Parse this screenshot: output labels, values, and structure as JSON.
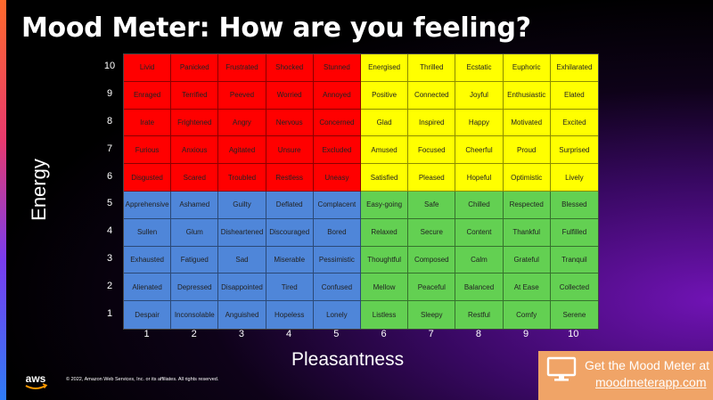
{
  "title": "Mood Meter: How are you feeling?",
  "y_axis_label": "Energy",
  "x_axis_label": "Pleasantness",
  "y_ticks": [
    "10",
    "9",
    "8",
    "7",
    "6",
    "5",
    "4",
    "3",
    "2",
    "1"
  ],
  "x_ticks": [
    "1",
    "2",
    "3",
    "4",
    "5",
    "6",
    "7",
    "8",
    "9",
    "10"
  ],
  "quadrant_colors": {
    "red": "#ff0000",
    "yellow": "#ffff00",
    "blue": "#4f86d9",
    "green": "#63d052"
  },
  "rows": [
    [
      "Livid",
      "Panicked",
      "Frustrated",
      "Shocked",
      "Stunned",
      "Energised",
      "Thrilled",
      "Ecstatic",
      "Euphoric",
      "Exhilarated"
    ],
    [
      "Enraged",
      "Terrified",
      "Peeved",
      "Worried",
      "Annoyed",
      "Positive",
      "Connected",
      "Joyful",
      "Enthusiastic",
      "Elated"
    ],
    [
      "Irate",
      "Frightened",
      "Angry",
      "Nervous",
      "Concerned",
      "Glad",
      "Inspired",
      "Happy",
      "Motivated",
      "Excited"
    ],
    [
      "Furious",
      "Anxious",
      "Agitated",
      "Unsure",
      "Excluded",
      "Amused",
      "Focused",
      "Cheerful",
      "Proud",
      "Surprised"
    ],
    [
      "Disgusted",
      "Scared",
      "Troubled",
      "Restless",
      "Uneasy",
      "Satisfied",
      "Pleased",
      "Hopeful",
      "Optimistic",
      "Lively"
    ],
    [
      "Apprehensive",
      "Ashamed",
      "Guilty",
      "Deflated",
      "Complacent",
      "Easy-going",
      "Safe",
      "Chilled",
      "Respected",
      "Blessed"
    ],
    [
      "Sullen",
      "Glum",
      "Disheartened",
      "Discouraged",
      "Bored",
      "Relaxed",
      "Secure",
      "Content",
      "Thankful",
      "Fulfilled"
    ],
    [
      "Exhausted",
      "Fatigued",
      "Sad",
      "Miserable",
      "Pessimistic",
      "Thoughtful",
      "Composed",
      "Calm",
      "Grateful",
      "Tranquil"
    ],
    [
      "Alienated",
      "Depressed",
      "Disappointed",
      "Tired",
      "Confused",
      "Mellow",
      "Peaceful",
      "Balanced",
      "At Ease",
      "Collected"
    ],
    [
      "Despair",
      "Inconsolable",
      "Anguished",
      "Hopeless",
      "Lonely",
      "Listless",
      "Sleepy",
      "Restful",
      "Comfy",
      "Serene"
    ]
  ],
  "footer": {
    "logo_text": "aws",
    "copyright": "© 2022, Amazon Web Services, Inc. or its affiliates. All rights reserved."
  },
  "promo": {
    "icon": "monitor-icon",
    "line1": "Get the Mood Meter at",
    "line2": "moodmeterapp.com"
  }
}
